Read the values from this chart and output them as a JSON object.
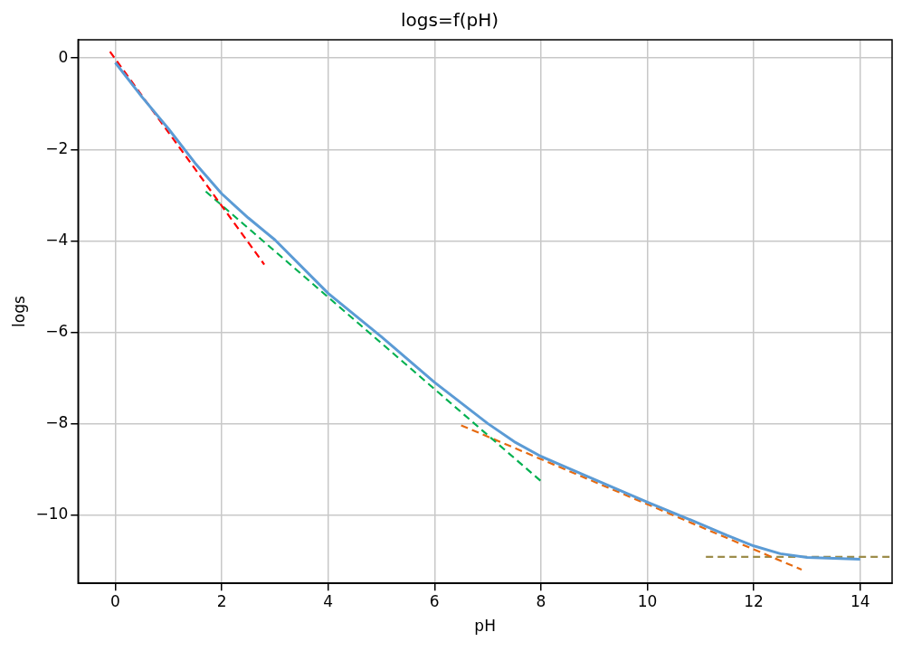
{
  "chart_data": {
    "type": "line",
    "title": "logs=f(pH)",
    "xlabel": "pH",
    "ylabel": "logs",
    "xlim": [
      -0.7,
      14.6
    ],
    "ylim": [
      -11.5,
      0.4
    ],
    "xticks": [
      0,
      2,
      4,
      6,
      8,
      10,
      12,
      14
    ],
    "yticks": [
      -10,
      -8,
      -6,
      -4,
      -2,
      0
    ],
    "grid": true,
    "legend": false,
    "marker": "none",
    "series": [
      {
        "color": "#5b9bd5",
        "line_style": "solid",
        "x": [
          0,
          0.5,
          1,
          1.5,
          2,
          2.5,
          3,
          4,
          5,
          6,
          6.5,
          7,
          7.5,
          8,
          9,
          10,
          11,
          11.5,
          12,
          12.5,
          13,
          14
        ],
        "values": [
          -0.1,
          -0.85,
          -1.55,
          -2.3,
          -2.97,
          -3.5,
          -3.98,
          -5.15,
          -6.1,
          -7.1,
          -7.55,
          -8.0,
          -8.4,
          -8.72,
          -9.22,
          -9.72,
          -10.2,
          -10.45,
          -10.68,
          -10.85,
          -10.93,
          -10.97
        ]
      },
      {
        "color": "#ff0000",
        "line_style": "dashed",
        "x": [
          -0.1,
          2.8
        ],
        "values": [
          0.14,
          -4.52
        ]
      },
      {
        "color": "#00b050",
        "line_style": "dashed",
        "x": [
          1.7,
          8
        ],
        "values": [
          -2.92,
          -9.26
        ]
      },
      {
        "color": "#e66a10",
        "line_style": "dashed",
        "x": [
          6.5,
          12.9
        ],
        "values": [
          -8.04,
          -11.2
        ]
      },
      {
        "color": "#9c8c4a",
        "line_style": "dashed",
        "x": [
          11.1,
          14.6
        ],
        "values": [
          -10.92,
          -10.92
        ]
      }
    ]
  }
}
